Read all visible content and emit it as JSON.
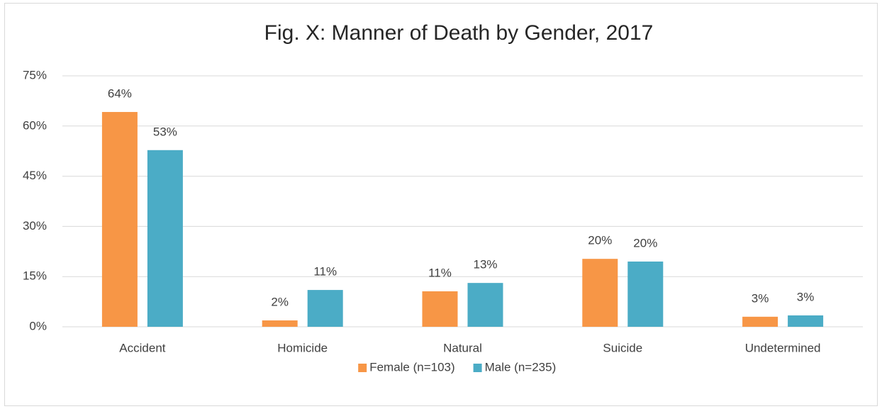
{
  "chart_data": {
    "type": "bar",
    "title": "Fig. X: Manner of Death by Gender, 2017",
    "categories": [
      "Accident",
      "Homicide",
      "Natural",
      "Suicide",
      "Undetermined"
    ],
    "series": [
      {
        "name": "Female (n=103)",
        "color": "#f79646",
        "values": [
          64.2,
          1.9,
          10.6,
          20.3,
          3.0
        ],
        "value_labels": [
          "64%",
          "2%",
          "11%",
          "20%",
          "3%"
        ]
      },
      {
        "name": "Male (n=235)",
        "color": "#4bacc6",
        "values": [
          52.8,
          11.0,
          13.1,
          19.5,
          3.4
        ],
        "value_labels": [
          "53%",
          "11%",
          "13%",
          "20%",
          "3%"
        ]
      }
    ],
    "ylim": [
      0,
      75
    ],
    "yticks": [
      {
        "value": 0,
        "label": "0%"
      },
      {
        "value": 15,
        "label": "15%"
      },
      {
        "value": 30,
        "label": "30%"
      },
      {
        "value": 45,
        "label": "45%"
      },
      {
        "value": 60,
        "label": "60%"
      },
      {
        "value": 75,
        "label": "75%"
      }
    ],
    "grid": true,
    "legend": "bottom"
  }
}
